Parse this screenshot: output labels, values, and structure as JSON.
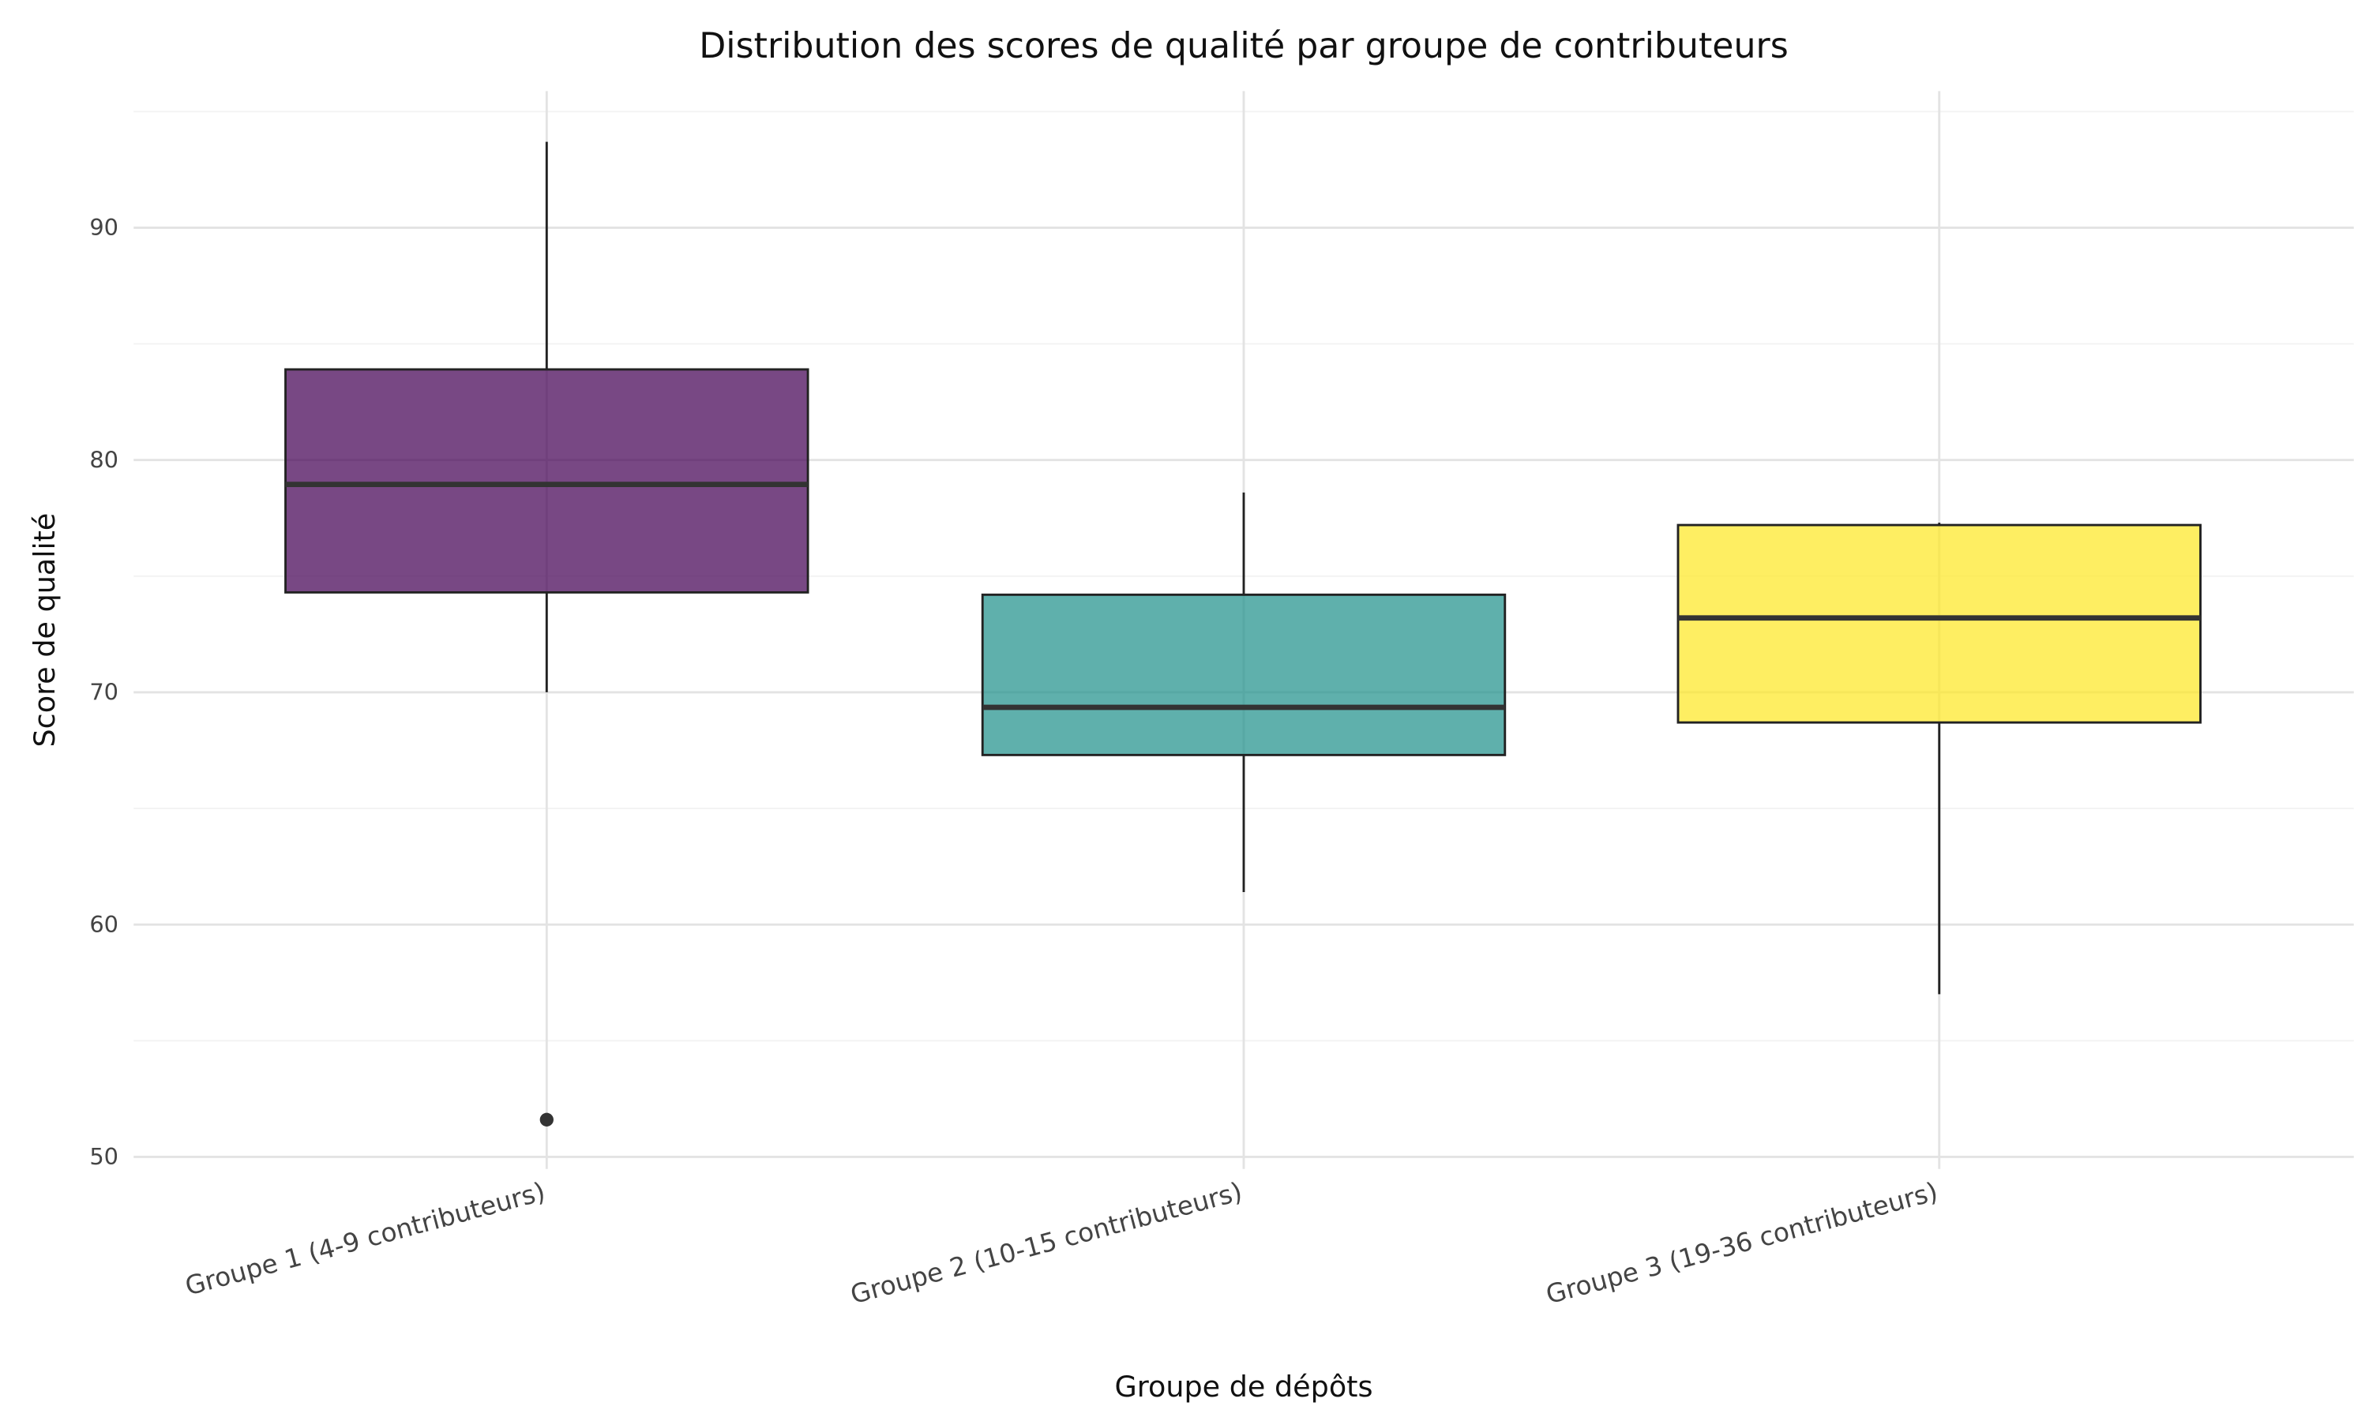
{
  "chart_data": {
    "type": "box",
    "title": "Distribution des scores de qualité par groupe de contributeurs",
    "xlabel": "Groupe de dépôts",
    "ylabel": "Score de qualité",
    "ylim": [
      45,
      96
    ],
    "yticks": [
      50,
      60,
      70,
      80,
      90
    ],
    "grid": true,
    "categories": [
      "Groupe 1 (4-9 contributeurs)",
      "Groupe 2 (10-15 contributeurs)",
      "Groupe 3 (19-36 contributeurs)"
    ],
    "boxes": [
      {
        "whisker_low": 70.0,
        "q1": 74.3,
        "median": 78.95,
        "q3": 83.9,
        "whisker_high": 93.7,
        "outliers": [
          51.6
        ],
        "color": "#440154"
      },
      {
        "whisker_low": 61.4,
        "q1": 67.3,
        "median": 69.35,
        "q3": 74.2,
        "whisker_high": 78.6,
        "outliers": [],
        "color": "#21918c"
      },
      {
        "whisker_low": 57.0,
        "q1": 68.7,
        "median": 73.2,
        "q3": 77.2,
        "whisker_high": 77.3,
        "outliers": [],
        "color": "#fde725"
      }
    ]
  }
}
